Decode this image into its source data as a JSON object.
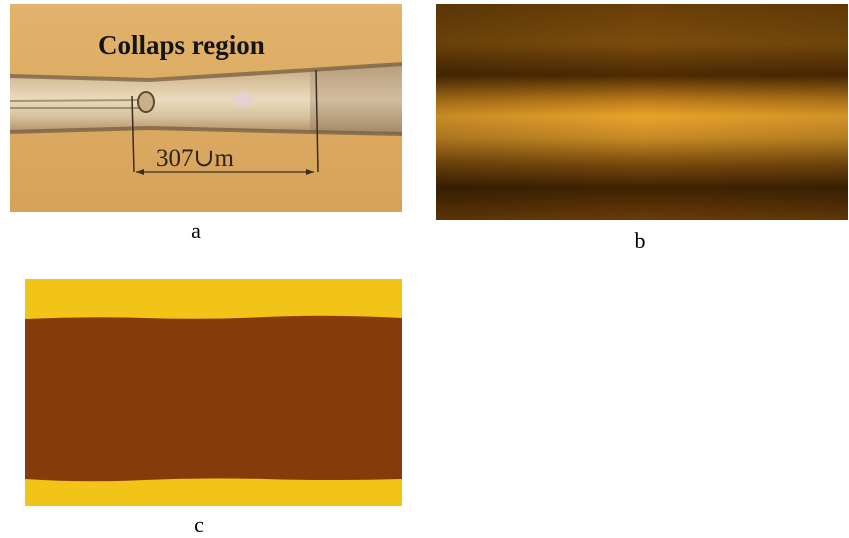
{
  "figure": {
    "panel_a": {
      "title": "Collaps region",
      "scale_label": "307∪m",
      "caption": "a"
    },
    "panel_b": {
      "caption": "b"
    },
    "panel_c": {
      "caption": "c"
    },
    "colors": {
      "panel_a_background": "#dcaa63",
      "panel_b_dark": "#5a3204",
      "panel_b_bright": "#e8a12a",
      "panel_c_yellow": "#f2c417",
      "panel_c_core": "#8a3d0a"
    }
  }
}
